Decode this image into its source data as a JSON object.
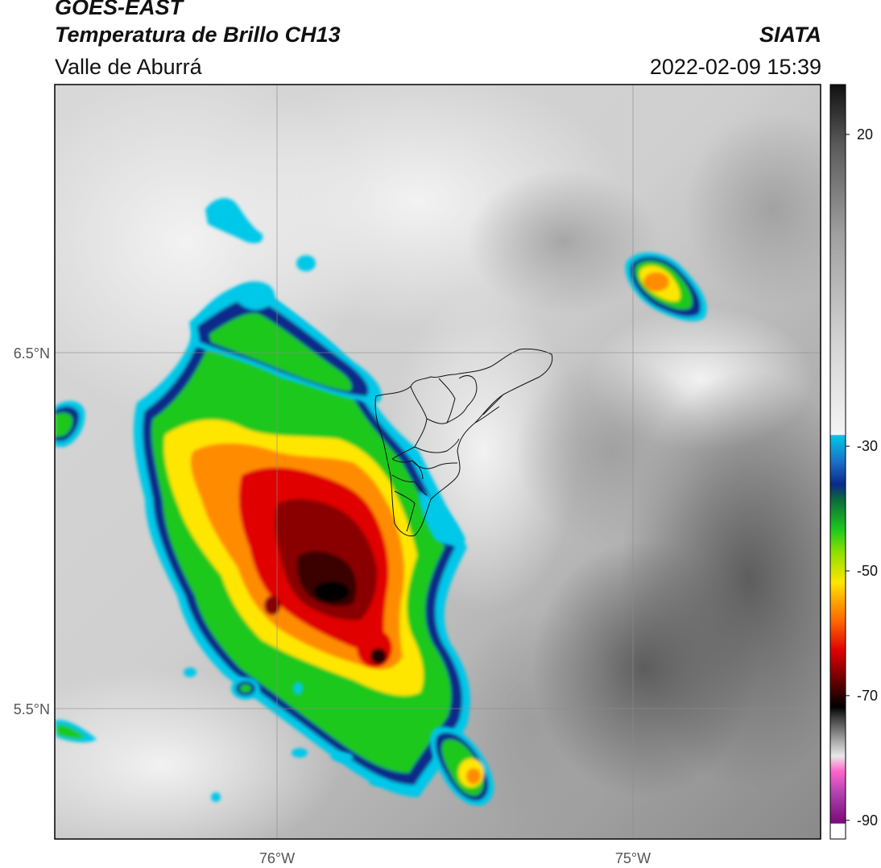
{
  "header": {
    "satellite": "GOES-EAST",
    "product": "Temperatura de Brillo CH13",
    "region": "Valle de Aburrá",
    "org": "SIATA",
    "datetime": "2022-02-09 15:39"
  },
  "map": {
    "lat_ticks": [
      {
        "label": "6.5°N",
        "value": 6.5
      },
      {
        "label": "5.5°N",
        "value": 5.5
      }
    ],
    "lon_ticks": [
      {
        "label": "76°W",
        "value": -76
      },
      {
        "label": "75°W",
        "value": -75
      }
    ],
    "extent": {
      "lon_min": -76.62,
      "lon_max": -74.38,
      "lat_min": 5.13,
      "lat_max": 7.25
    }
  },
  "colorbar": {
    "ticks": [
      {
        "label": "20",
        "value": 20
      },
      {
        "label": "-30",
        "value": -30
      },
      {
        "label": "-50",
        "value": -50
      },
      {
        "label": "-70",
        "value": -70
      },
      {
        "label": "-90",
        "value": -90
      }
    ],
    "range": [
      -93,
      28
    ],
    "colors": {
      "warm_gray_light": "#f0f0f0",
      "warm_gray_dark": "#606060",
      "cyan": "#00c8e8",
      "blue": "#0a2a8a",
      "green": "#1ec81e",
      "yellow": "#ffe600",
      "orange": "#ff8c00",
      "red": "#e00000",
      "dark_red": "#4a0000",
      "black": "#000000",
      "pink": "#ff66cc",
      "purple": "#8a0a8a"
    }
  }
}
